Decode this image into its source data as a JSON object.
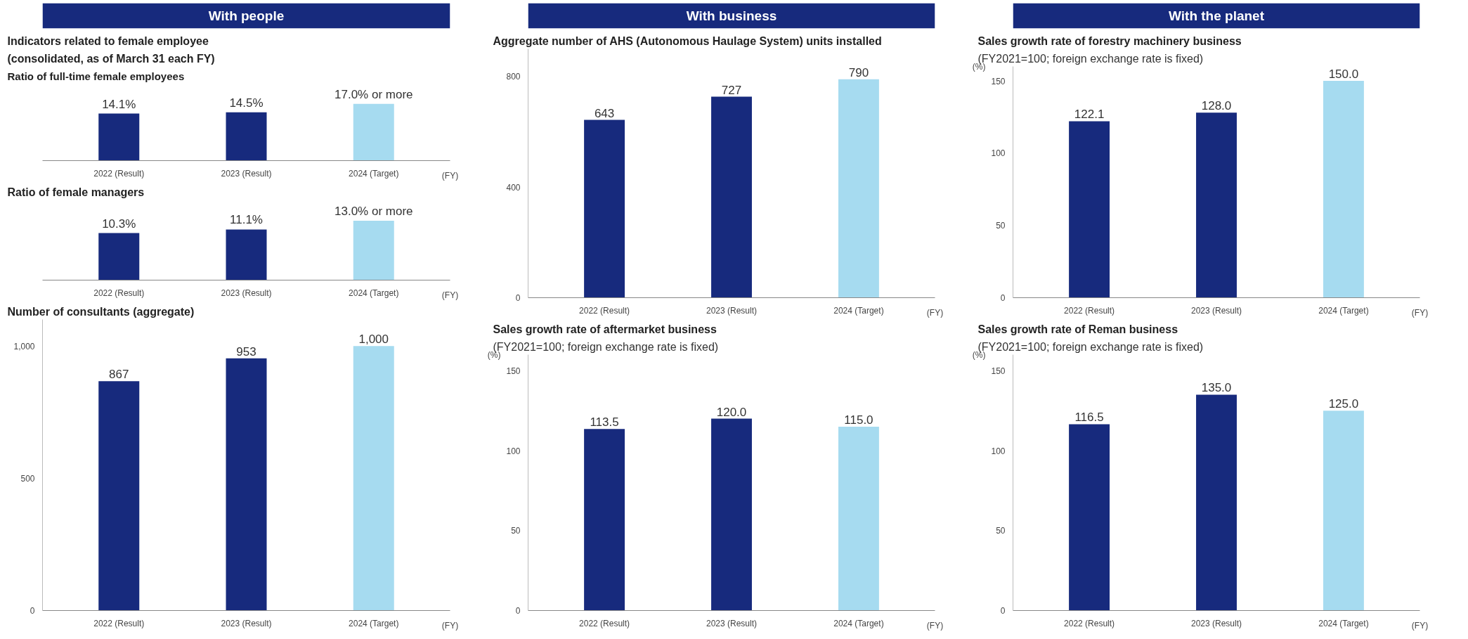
{
  "chart_data": [
    {
      "type": "bar",
      "annotations": [
        "With people",
        "Indicators related to female employee",
        "(consolidated, as of March 31 each FY)"
      ],
      "title": "Ratio of full-time female employees",
      "xlabel": "(FY)",
      "categories": [
        "2022 (Result)",
        "2023 (Result)",
        "2024 (Target)"
      ],
      "values": [
        14.1,
        14.5,
        17.0
      ],
      "colors": [
        "#172a7d",
        "#172a7d",
        "#a6dbf0"
      ],
      "value_labels": [
        "14.1%",
        "14.5%",
        "17.0% or more"
      ],
      "tick_labels": "x",
      "grid": false
    },
    {
      "type": "bar",
      "title": "Ratio of female managers",
      "xlabel": "(FY)",
      "categories": [
        "2022 (Result)",
        "2023 (Result)",
        "2024 (Target)"
      ],
      "values": [
        10.3,
        11.1,
        13.0
      ],
      "colors": [
        "#172a7d",
        "#172a7d",
        "#a6dbf0"
      ],
      "value_labels": [
        "10.3%",
        "11.1%",
        "13.0% or more"
      ],
      "tick_labels": "x",
      "grid": false
    },
    {
      "type": "bar",
      "title": "Number of consultants (aggregate)",
      "xlabel": "(FY)",
      "categories": [
        "2022 (Result)",
        "2023 (Result)",
        "2024 (Target)"
      ],
      "values": [
        867,
        953,
        1000
      ],
      "colors": [
        "#172a7d",
        "#172a7d",
        "#a6dbf0"
      ],
      "value_labels": [
        "867",
        "953",
        "1,000"
      ],
      "ylim": [
        0,
        1100
      ],
      "yticks": [
        0,
        500,
        {
          "value": 1000,
          "label": "1,000"
        }
      ],
      "grid": false
    },
    {
      "type": "bar",
      "annotations": [
        "With business"
      ],
      "title": "Aggregate number of AHS (Autonomous Haulage System) units installed",
      "xlabel": "(FY)",
      "categories": [
        "2022 (Result)",
        "2023 (Result)",
        "2024 (Target)"
      ],
      "values": [
        643,
        727,
        790
      ],
      "colors": [
        "#172a7d",
        "#172a7d",
        "#a6dbf0"
      ],
      "data_labels": true,
      "ylim": [
        0,
        900
      ],
      "yticks": [
        0,
        400,
        800
      ],
      "grid": false
    },
    {
      "type": "bar",
      "title": "Sales growth rate of aftermarket business",
      "subtitle": "(FY2021=100; foreign exchange rate is fixed)",
      "ylabel": "(%)",
      "xlabel": "(FY)",
      "categories": [
        "2022 (Result)",
        "2023 (Result)",
        "2024 (Target)"
      ],
      "values": [
        113.5,
        120.0,
        115.0
      ],
      "colors": [
        "#172a7d",
        "#172a7d",
        "#a6dbf0"
      ],
      "value_labels": [
        "113.5",
        "120.0",
        "115.0"
      ],
      "ylim": [
        0,
        160
      ],
      "yticks": [
        0,
        50,
        100,
        150
      ],
      "grid": false
    },
    {
      "type": "bar",
      "annotations": [
        "With the planet"
      ],
      "title": "Sales growth rate of forestry machinery business",
      "subtitle": "(FY2021=100; foreign exchange rate is fixed)",
      "ylabel": "(%)",
      "xlabel": "(FY)",
      "categories": [
        "2022 (Result)",
        "2023 (Result)",
        "2024 (Target)"
      ],
      "values": [
        122.1,
        128.0,
        150.0
      ],
      "colors": [
        "#172a7d",
        "#172a7d",
        "#a6dbf0"
      ],
      "value_labels": [
        "122.1",
        "128.0",
        "150.0"
      ],
      "ylim": [
        0,
        160
      ],
      "yticks": [
        0,
        50,
        100,
        150
      ],
      "grid": false
    },
    {
      "type": "bar",
      "title": "Sales growth rate of Reman business",
      "subtitle": "(FY2021=100; foreign exchange rate is fixed)",
      "ylabel": "(%)",
      "xlabel": "(FY)",
      "categories": [
        "2022 (Result)",
        "2023 (Result)",
        "2024 (Target)"
      ],
      "values": [
        116.5,
        135.0,
        125.0
      ],
      "colors": [
        "#172a7d",
        "#172a7d",
        "#a6dbf0"
      ],
      "value_labels": [
        "116.5",
        "135.0",
        "125.0"
      ],
      "ylim": [
        0,
        160
      ],
      "yticks": [
        0,
        50,
        100,
        150
      ],
      "grid": false
    }
  ]
}
